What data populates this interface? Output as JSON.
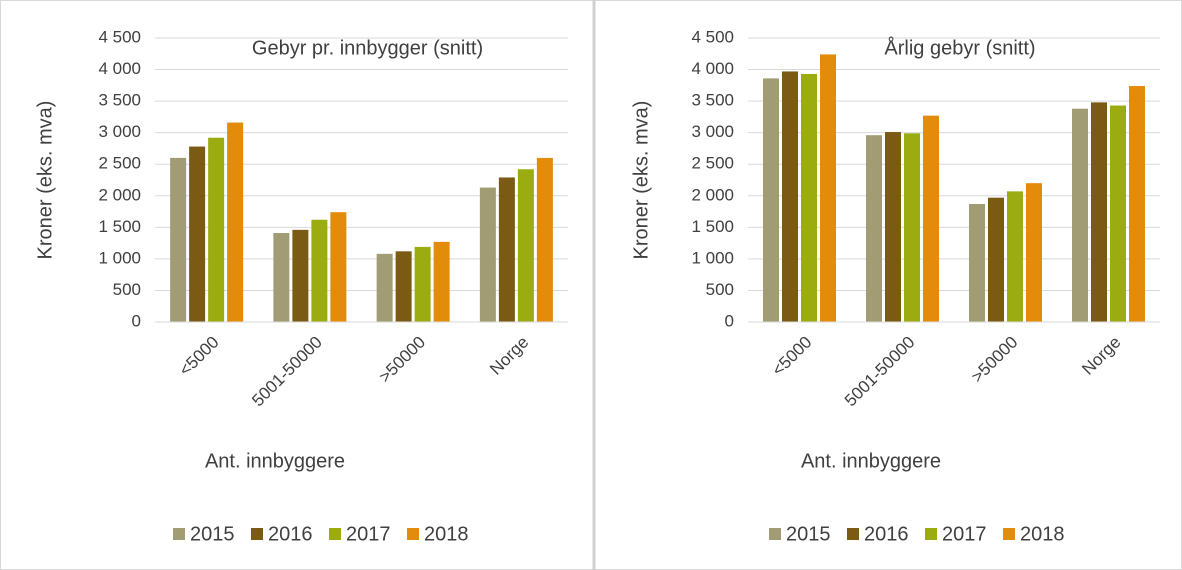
{
  "chart_data": [
    {
      "type": "bar",
      "title": "Gebyr pr. innbygger (snitt)",
      "y_label": "Kroner (eks. mva)",
      "x_label": "Ant. innbyggere",
      "categories": [
        "<5000",
        "5001-50000",
        ">50000",
        "Norge"
      ],
      "series": [
        {
          "name": "2015",
          "color": "#a19c73",
          "values": [
            2600,
            1410,
            1080,
            2130
          ]
        },
        {
          "name": "2016",
          "color": "#7b5b13",
          "values": [
            2780,
            1460,
            1120,
            2290
          ]
        },
        {
          "name": "2017",
          "color": "#9bac10",
          "values": [
            2920,
            1620,
            1190,
            2420
          ]
        },
        {
          "name": "2018",
          "color": "#e38b0b",
          "values": [
            3160,
            1740,
            1270,
            2600
          ]
        }
      ],
      "ylim": [
        0,
        4500
      ],
      "yticks": [
        0,
        500,
        {
          "value": 1000,
          "label": "1 000"
        },
        {
          "value": 1500,
          "label": "1 500"
        },
        {
          "value": 2000,
          "label": "2 000"
        },
        {
          "value": 2500,
          "label": "2 500"
        },
        {
          "value": 3000,
          "label": "3 000"
        },
        {
          "value": 3500,
          "label": "3 500"
        },
        {
          "value": 4000,
          "label": "4 000"
        },
        {
          "value": 4500,
          "label": "4 500"
        }
      ],
      "grid": true,
      "legend": "bottom"
    },
    {
      "type": "bar",
      "title": "Årlig gebyr (snitt)",
      "y_label": "Kroner (eks. mva)",
      "x_label": "Ant. innbyggere",
      "categories": [
        "<5000",
        "5001-50000",
        ">50000",
        "Norge"
      ],
      "series": [
        {
          "name": "2015",
          "color": "#a19c73",
          "values": [
            3860,
            2960,
            1870,
            3380
          ]
        },
        {
          "name": "2016",
          "color": "#7b5b13",
          "values": [
            3970,
            3010,
            1970,
            3480
          ]
        },
        {
          "name": "2017",
          "color": "#9bac10",
          "values": [
            3930,
            2990,
            2070,
            3430
          ]
        },
        {
          "name": "2018",
          "color": "#e38b0b",
          "values": [
            4240,
            3270,
            2200,
            3740
          ]
        }
      ],
      "ylim": [
        0,
        4500
      ],
      "yticks": [
        0,
        500,
        {
          "value": 1000,
          "label": "1 000"
        },
        {
          "value": 1500,
          "label": "1 500"
        },
        {
          "value": 2000,
          "label": "2 000"
        },
        {
          "value": 2500,
          "label": "2 500"
        },
        {
          "value": 3000,
          "label": "3 000"
        },
        {
          "value": 3500,
          "label": "3 500"
        },
        {
          "value": 4000,
          "label": "4 000"
        },
        {
          "value": 4500,
          "label": "4 500"
        }
      ],
      "grid": true,
      "legend": "bottom"
    }
  ]
}
